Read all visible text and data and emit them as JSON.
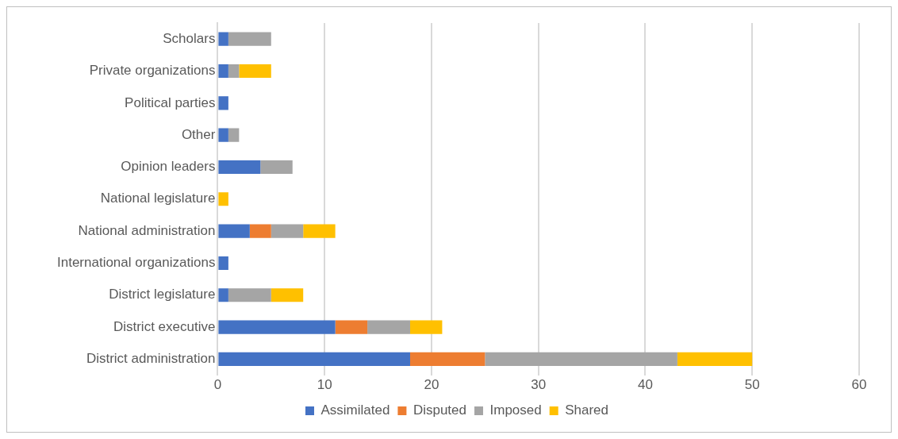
{
  "chart_data": {
    "type": "bar",
    "orientation": "horizontal",
    "stacked": true,
    "categories": [
      "Scholars",
      "Private organizations",
      "Political parties",
      "Other",
      "Opinion leaders",
      "National legislature",
      "National administration",
      "International organizations",
      "District legislature",
      "District executive",
      "District administration"
    ],
    "series": [
      {
        "name": "Assimilated",
        "color": "#4472c4",
        "values": [
          1,
          1,
          1,
          1,
          4,
          null,
          3,
          1,
          1,
          11,
          18
        ]
      },
      {
        "name": "Disputed",
        "color": "#ed7d31",
        "values": [
          null,
          null,
          null,
          null,
          null,
          null,
          2,
          null,
          null,
          3,
          7
        ]
      },
      {
        "name": "Imposed",
        "color": "#a5a5a5",
        "values": [
          4,
          1,
          null,
          1,
          3,
          null,
          3,
          null,
          4,
          4,
          18
        ]
      },
      {
        "name": "Shared",
        "color": "#ffc000",
        "values": [
          null,
          3,
          null,
          null,
          null,
          1,
          3,
          null,
          3,
          3,
          7
        ]
      }
    ],
    "xlim": [
      0,
      60
    ],
    "xticks": [
      0,
      10,
      20,
      30,
      40,
      50,
      60
    ],
    "grid": "x",
    "legend": "bottom"
  }
}
